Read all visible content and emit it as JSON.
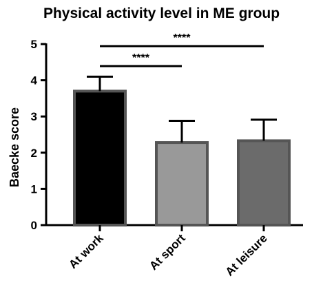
{
  "chart_data": {
    "type": "bar",
    "title": "Physical activity level in ME group",
    "xlabel": "",
    "ylabel": "Baecke score",
    "ylim": [
      0,
      5
    ],
    "yticks": [
      "0",
      "1",
      "2",
      "3",
      "4",
      "5"
    ],
    "categories": [
      "At work",
      "At sport",
      "At leisure"
    ],
    "values": [
      3.7,
      2.28,
      2.33
    ],
    "error_upper": [
      4.1,
      2.88,
      2.91
    ],
    "bar_colors": [
      "#000000",
      "#999999",
      "#6b6b6b"
    ],
    "bar_border_color": "#555555",
    "grid": false,
    "significance": [
      {
        "from": "At work",
        "to": "At sport",
        "label": "****"
      },
      {
        "from": "At work",
        "to": "At leisure",
        "label": "****"
      }
    ]
  }
}
